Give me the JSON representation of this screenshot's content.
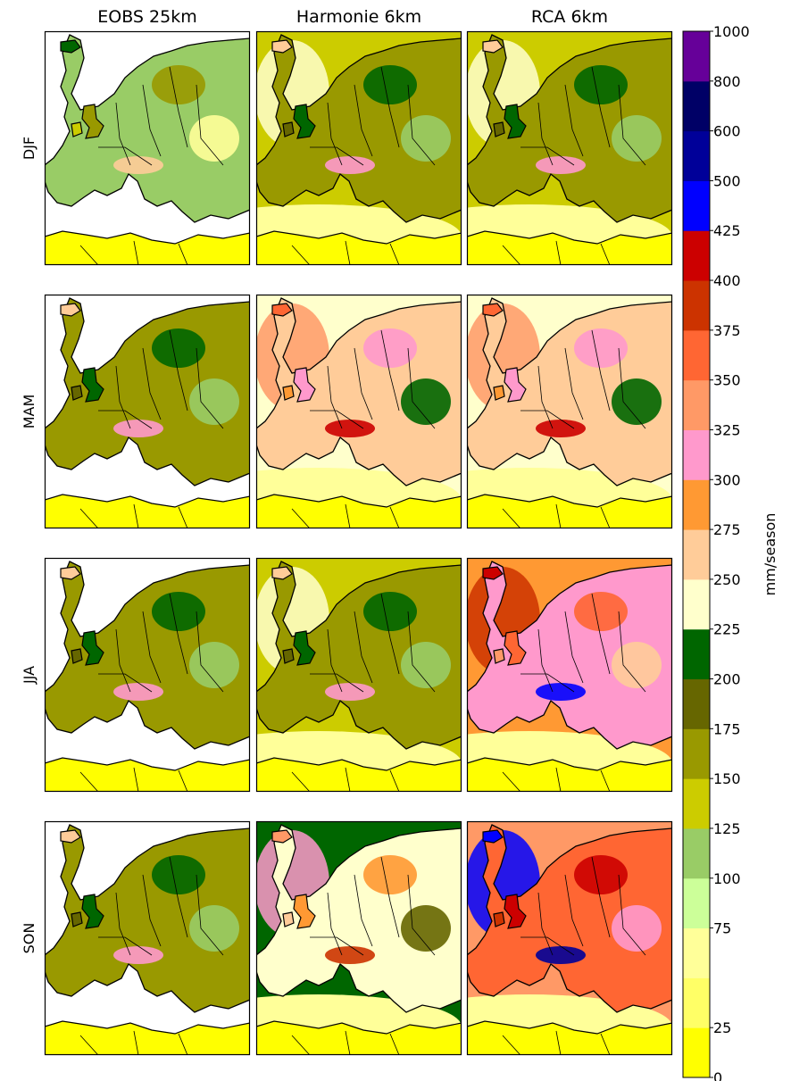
{
  "chart_data": {
    "type": "heatmap",
    "columns": [
      "EOBS 25km",
      "Harmonie 6km",
      "RCA 6km"
    ],
    "rows": [
      "DJF",
      "MAM",
      "JJA",
      "SON"
    ],
    "colorbar": {
      "label": "mm/season",
      "ticks": [
        0,
        25,
        75,
        100,
        125,
        150,
        175,
        200,
        225,
        250,
        275,
        300,
        325,
        350,
        375,
        400,
        425,
        500,
        600,
        800,
        1000
      ],
      "levels": [
        0,
        25,
        50,
        75,
        100,
        125,
        150,
        175,
        200,
        225,
        250,
        275,
        300,
        325,
        350,
        375,
        400,
        425,
        500,
        600,
        800,
        1000
      ],
      "colors": [
        "#ffff00",
        "#ffff66",
        "#ffff99",
        "#ccff99",
        "#99cc66",
        "#cccc00",
        "#999900",
        "#666600",
        "#006600",
        "#ffffcc",
        "#ffcc99",
        "#ff9933",
        "#ff99cc",
        "#ff9966",
        "#ff6633",
        "#cc3300",
        "#cc0000",
        "#0000ff",
        "#000099",
        "#000066",
        "#660099"
      ]
    },
    "panel_dominant_levels": [
      [
        100,
        150,
        150
      ],
      [
        150,
        250,
        250
      ],
      [
        150,
        150,
        300
      ],
      [
        150,
        225,
        350
      ]
    ]
  }
}
